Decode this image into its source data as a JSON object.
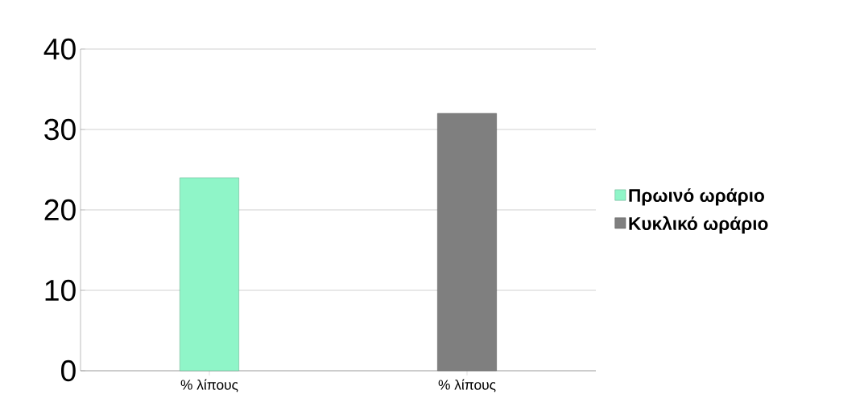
{
  "chart_data": {
    "type": "bar",
    "categories": [
      "% λίπους",
      "% λίπους"
    ],
    "series": [
      {
        "name": "Πρωινό ωράριο",
        "color": "#8ff5c8",
        "values": [
          24,
          null
        ]
      },
      {
        "name": "Κυκλικό ωράριο",
        "color": "#7f7f7f",
        "values": [
          null,
          32
        ]
      }
    ],
    "ylim": [
      0,
      40
    ],
    "yticks": [
      0,
      10,
      20,
      30,
      40
    ],
    "grid": "y",
    "legend": "right"
  }
}
